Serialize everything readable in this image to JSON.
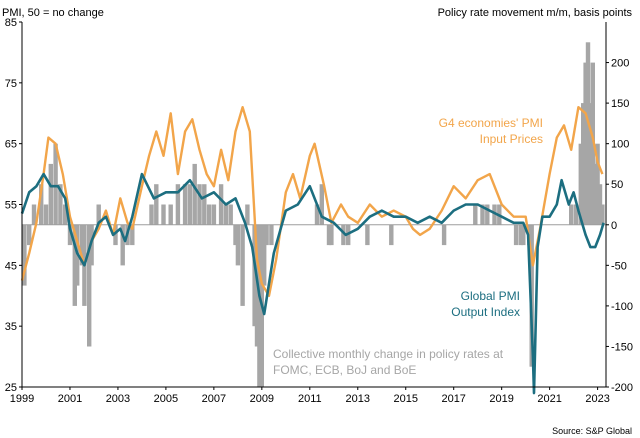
{
  "chart_data": {
    "type": "combo",
    "left_axis_label": "PMI, 50 = no change",
    "right_axis_label": "Policy rate movement m/m, basis points",
    "source": "Source: S&P Global",
    "left_ylim": [
      25,
      85
    ],
    "left_ticks": [
      25,
      35,
      45,
      55,
      65,
      75,
      85
    ],
    "right_ylim": [
      -200,
      250
    ],
    "right_ticks": [
      -200,
      -150,
      -100,
      -50,
      0,
      50,
      100,
      150,
      200
    ],
    "xlim": [
      1999.0,
      2023.35
    ],
    "x_ticks": [
      "1999",
      "2001",
      "2003",
      "2005",
      "2007",
      "2009",
      "2011",
      "2013",
      "2015",
      "2017",
      "2019",
      "2021",
      "2023"
    ],
    "grid": false,
    "colors": {
      "input_prices": "#F2A54A",
      "output_index": "#1C6E80",
      "policy_bars": "#A6A6A6",
      "zero_line": "#9E9E9E"
    },
    "annotations": {
      "input_prices_line1": "G4 economies' PMI",
      "input_prices_line2": "Input Prices",
      "output_line1": "Global PMI",
      "output_line2": "Output Index",
      "bars_line1": "Collective monthly change in policy rates at",
      "bars_line2": "FOMC, ECB, BoJ and BoE"
    },
    "series": [
      {
        "name": "G4 economies' PMI Input Prices",
        "axis": "left",
        "kind": "line",
        "x": [
          1999.0,
          1999.3,
          1999.6,
          1999.9,
          2000.1,
          2000.4,
          2000.7,
          2001.0,
          2001.3,
          2001.6,
          2001.9,
          2002.2,
          2002.5,
          2002.8,
          2003.1,
          2003.4,
          2003.6,
          2004.0,
          2004.3,
          2004.6,
          2004.9,
          2005.2,
          2005.5,
          2005.8,
          2006.1,
          2006.4,
          2006.7,
          2007.0,
          2007.3,
          2007.6,
          2007.9,
          2008.2,
          2008.5,
          2008.8,
          2009.0,
          2009.3,
          2009.6,
          2010.0,
          2010.3,
          2010.6,
          2011.0,
          2011.2,
          2011.6,
          2011.9,
          2012.3,
          2012.6,
          2013.0,
          2013.5,
          2014.0,
          2014.5,
          2015.0,
          2015.3,
          2015.6,
          2016.0,
          2016.5,
          2017.0,
          2017.5,
          2018.0,
          2018.5,
          2019.0,
          2019.5,
          2020.0,
          2020.3,
          2020.6,
          2021.0,
          2021.3,
          2021.6,
          2021.9,
          2022.2,
          2022.5,
          2022.8,
          2023.0,
          2023.2
        ],
        "values": [
          42.5,
          47,
          52,
          60,
          66,
          65,
          60,
          53,
          49,
          45,
          49,
          51,
          54,
          50,
          56,
          52,
          51,
          58,
          63,
          67,
          63,
          70,
          60,
          67,
          69,
          64,
          60,
          58,
          64,
          59,
          67,
          71,
          67,
          46,
          42,
          40,
          46,
          57,
          60,
          56,
          63,
          65,
          58,
          52,
          55,
          53,
          52,
          55,
          53,
          54,
          53,
          51,
          50,
          51,
          54,
          58,
          56,
          59,
          60,
          55,
          53,
          53,
          45,
          51,
          60,
          66,
          68,
          64,
          71,
          70,
          66,
          62,
          60
        ]
      },
      {
        "name": "Global PMI Output Index",
        "axis": "left",
        "kind": "line",
        "x": [
          1999.0,
          1999.3,
          1999.6,
          1999.9,
          2000.2,
          2000.5,
          2000.8,
          2001.0,
          2001.3,
          2001.6,
          2001.9,
          2002.2,
          2002.5,
          2002.8,
          2003.1,
          2003.3,
          2003.6,
          2004.0,
          2004.5,
          2005.0,
          2005.5,
          2006.0,
          2006.5,
          2007.0,
          2007.5,
          2007.9,
          2008.3,
          2008.6,
          2008.9,
          2009.1,
          2009.5,
          2010.0,
          2010.5,
          2011.0,
          2011.5,
          2012.0,
          2012.5,
          2013.0,
          2013.5,
          2014.0,
          2014.5,
          2015.0,
          2015.5,
          2016.0,
          2016.5,
          2017.0,
          2017.5,
          2018.0,
          2018.5,
          2019.0,
          2019.5,
          2019.9,
          2020.1,
          2020.3,
          2020.35,
          2020.5,
          2020.7,
          2021.0,
          2021.3,
          2021.5,
          2021.8,
          2022.0,
          2022.2,
          2022.5,
          2022.7,
          2022.9,
          2023.1,
          2023.25
        ],
        "values": [
          53.5,
          57,
          58,
          60,
          58,
          58,
          56,
          51,
          47,
          45,
          49,
          52,
          53,
          50,
          51,
          49,
          53,
          60,
          56,
          57,
          57,
          59,
          56,
          57,
          55,
          56,
          52,
          48,
          40,
          37,
          47,
          54,
          55,
          58,
          53,
          52,
          50,
          51,
          53,
          54,
          53,
          53,
          52,
          53,
          52,
          54,
          55,
          55,
          54,
          53,
          52,
          52,
          50,
          30,
          24,
          48,
          53,
          53,
          55,
          59,
          55,
          57,
          54,
          50,
          48,
          48,
          50,
          52
        ]
      },
      {
        "name": "Collective monthly change in policy rates at FOMC, ECB, BoJ and BoE",
        "axis": "right",
        "kind": "bar",
        "x": [
          1999.1,
          1999.3,
          1999.5,
          1999.8,
          2000.0,
          2000.2,
          2000.4,
          2000.6,
          2000.8,
          2001.0,
          2001.2,
          2001.3,
          2001.5,
          2001.6,
          2001.8,
          2001.9,
          2002.2,
          2002.9,
          2003.2,
          2003.4,
          2003.6,
          2004.4,
          2004.6,
          2004.9,
          2005.2,
          2005.5,
          2005.8,
          2006.0,
          2006.2,
          2006.4,
          2006.6,
          2006.8,
          2007.0,
          2007.3,
          2007.5,
          2007.7,
          2007.9,
          2008.0,
          2008.2,
          2008.4,
          2008.7,
          2008.8,
          2008.9,
          2009.0,
          2009.1,
          2009.2,
          2009.4,
          2011.3,
          2011.5,
          2011.8,
          2011.9,
          2012.4,
          2012.6,
          2013.4,
          2014.4,
          2016.6,
          2017.9,
          2018.2,
          2018.4,
          2018.7,
          2018.9,
          2019.6,
          2019.8,
          2019.9,
          2020.15,
          2020.2,
          2020.25,
          2021.9,
          2022.1,
          2022.3,
          2022.4,
          2022.5,
          2022.6,
          2022.7,
          2022.8,
          2022.9,
          2023.0,
          2023.1,
          2023.2
        ],
        "values": [
          -75,
          -25,
          25,
          50,
          25,
          75,
          100,
          50,
          25,
          -25,
          -100,
          -75,
          -50,
          -100,
          -150,
          -50,
          25,
          -25,
          -50,
          -25,
          -25,
          25,
          50,
          25,
          25,
          50,
          50,
          50,
          75,
          50,
          50,
          25,
          25,
          50,
          25,
          25,
          -25,
          -50,
          -100,
          25,
          -125,
          -150,
          -200,
          -200,
          -75,
          -25,
          -25,
          25,
          50,
          -25,
          -25,
          -25,
          -25,
          -25,
          -25,
          -25,
          25,
          25,
          25,
          25,
          25,
          -25,
          -25,
          -25,
          -25,
          -50,
          -175,
          25,
          25,
          100,
          150,
          200,
          225,
          150,
          200,
          75,
          100,
          50,
          25
        ]
      }
    ]
  }
}
